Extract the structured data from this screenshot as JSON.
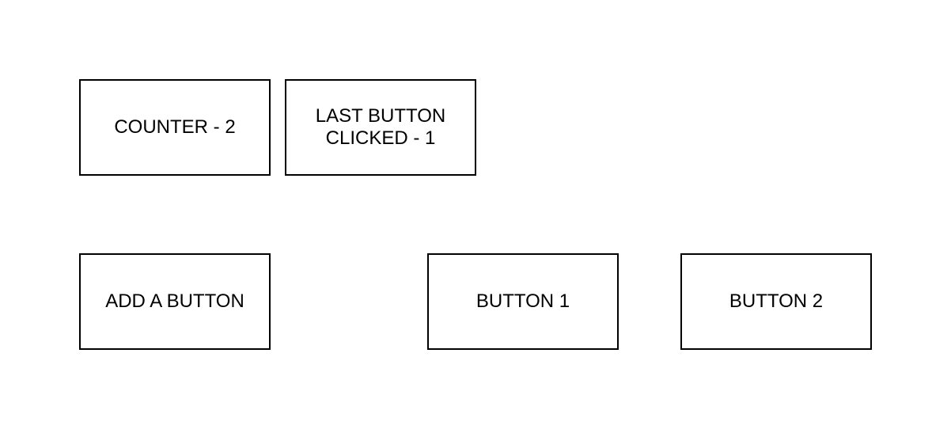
{
  "counter": {
    "label": "COUNTER - 2"
  },
  "last_clicked": {
    "label": "LAST BUTTON\nCLICKED - 1"
  },
  "controls": {
    "add_button_label": "ADD A BUTTON"
  },
  "buttons": [
    {
      "label": "BUTTON 1"
    },
    {
      "label": "BUTTON 2"
    }
  ]
}
